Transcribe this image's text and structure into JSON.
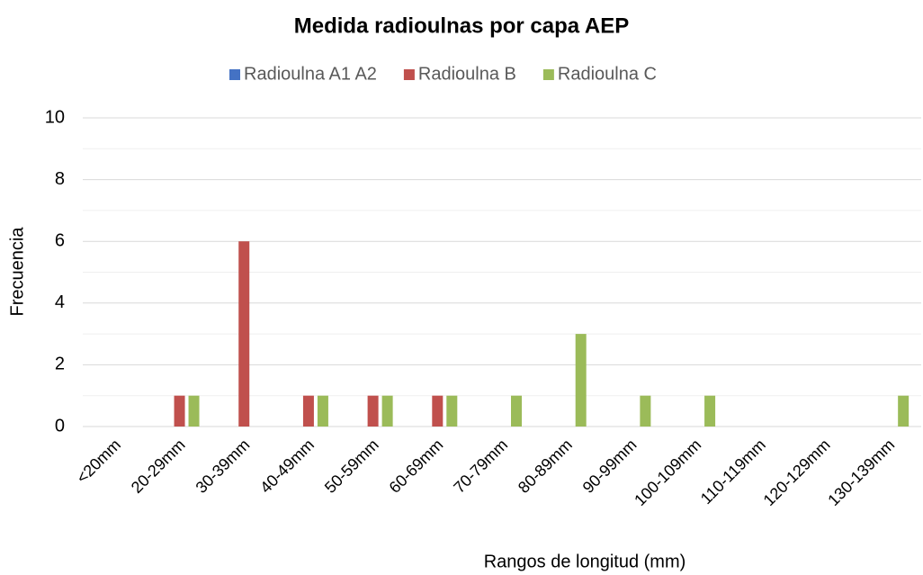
{
  "chart_data": {
    "type": "bar",
    "title": "Medida radioulnas por capa AEP",
    "x_label": "Rangos de longitud (mm)",
    "y_label": "Frecuencia",
    "categories": [
      "<20mm",
      "20-29mm",
      "30-39mm",
      "40-49mm",
      "50-59mm",
      "60-69mm",
      "70-79mm",
      "80-89mm",
      "90-99mm",
      "100-109mm",
      "110-119mm",
      "120-129mm",
      "130-139mm"
    ],
    "series": [
      {
        "name": "Radioulna A1 A2",
        "color": "#4472c4",
        "values": [
          0,
          0,
          0,
          0,
          0,
          0,
          0,
          0,
          0,
          0,
          0,
          0,
          0
        ]
      },
      {
        "name": "Radioulna B",
        "color": "#c0504d",
        "values": [
          0,
          1,
          6,
          1,
          1,
          1,
          0,
          0,
          0,
          0,
          0,
          0,
          0
        ]
      },
      {
        "name": "Radioulna C",
        "color": "#9bbb59",
        "values": [
          0,
          1,
          0,
          1,
          1,
          1,
          1,
          3,
          1,
          1,
          0,
          0,
          1
        ]
      }
    ],
    "ylim": [
      0,
      10
    ],
    "yticks": [
      0,
      2,
      4,
      6,
      8,
      10
    ],
    "minor_yticks": [
      1,
      3,
      5,
      7,
      9
    ],
    "grid": true,
    "legend": "top"
  }
}
